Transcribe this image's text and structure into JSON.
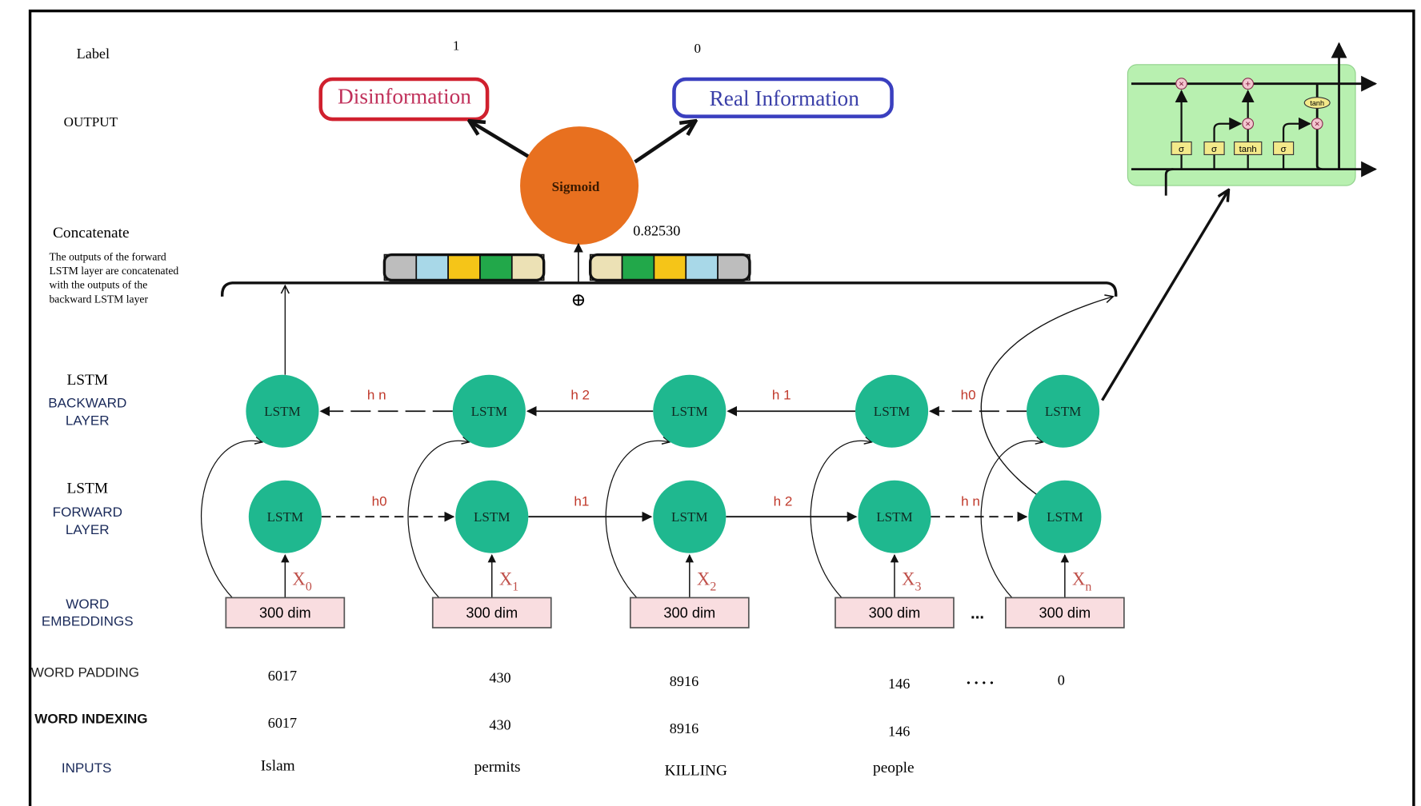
{
  "left_labels": {
    "label": "Label",
    "output": "OUTPUT",
    "concatenate": "Concatenate",
    "concat_note": [
      "The outputs of the forward",
      "LSTM layer are concatenated",
      "with the outputs of the",
      "backward LSTM layer"
    ],
    "backward_1": "LSTM",
    "backward_2": "BACKWARD",
    "backward_3": "LAYER",
    "forward_1": "LSTM",
    "forward_2": "FORWARD",
    "forward_3": "LAYER",
    "emb_1": "WORD",
    "emb_2": "EMBEDDINGS",
    "padding": "WORD PADDING",
    "indexing": "WORD INDEXING",
    "inputs": "INPUTS"
  },
  "output": {
    "label_disinfo": "1",
    "label_real": "0",
    "disinformation": "Disinformation",
    "real_information": "Real Information",
    "sigmoid": "Sigmoid",
    "score": "0.82530",
    "concat_symbol": "⊕"
  },
  "colors": {
    "lstm_node": "#1fb88f",
    "sigmoid": "#e8701f",
    "disinfo_border": "#d0202e",
    "real_border": "#3a3fbf",
    "embedding_box": "#f9dde0",
    "hidden_label": "#c0392b",
    "cell_bg": "#b8f0b0",
    "gate_bg": "#f3e98a",
    "vector_cells": [
      "#bdbdbd",
      "#a8d8e8",
      "#f5c518",
      "#22a84a",
      "#ece1b5"
    ]
  },
  "lstm_label": "LSTM",
  "backward_hidden": [
    "h n",
    "h 2",
    "h 1",
    "h0"
  ],
  "forward_hidden": [
    "h0",
    "h1",
    "h 2",
    "h n"
  ],
  "embeddings": {
    "box_label": "300 dim",
    "inputs": [
      "X0",
      "X1",
      "X2",
      "X3",
      "Xn"
    ],
    "ellipsis": "..."
  },
  "padding": [
    "6017",
    "430",
    "8916",
    "146",
    "0"
  ],
  "padding_ellipsis": "....",
  "indexing": [
    "6017",
    "430",
    "8916",
    "146"
  ],
  "words": [
    "Islam",
    "permits",
    "KILLING",
    "people"
  ],
  "cell_inset": {
    "gates": [
      "σ",
      "σ",
      "tanh",
      "σ"
    ],
    "output_tanh": "tanh",
    "ops": [
      "×",
      "+",
      "×",
      "×"
    ]
  }
}
